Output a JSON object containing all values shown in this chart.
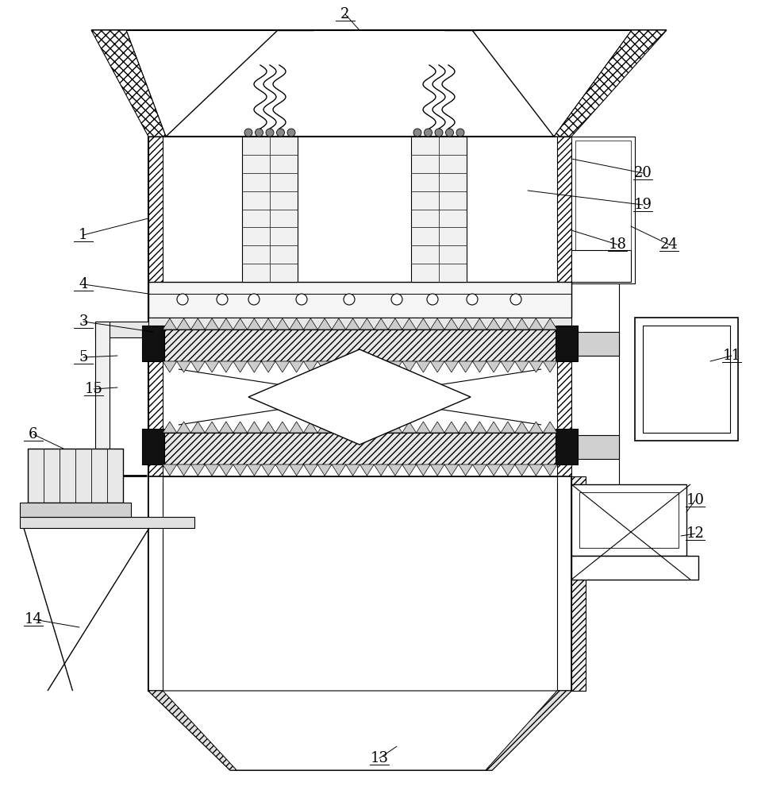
{
  "bg_color": "#ffffff",
  "line_color": "#000000",
  "fig_width": 9.69,
  "fig_height": 10.0,
  "dpi": 100
}
